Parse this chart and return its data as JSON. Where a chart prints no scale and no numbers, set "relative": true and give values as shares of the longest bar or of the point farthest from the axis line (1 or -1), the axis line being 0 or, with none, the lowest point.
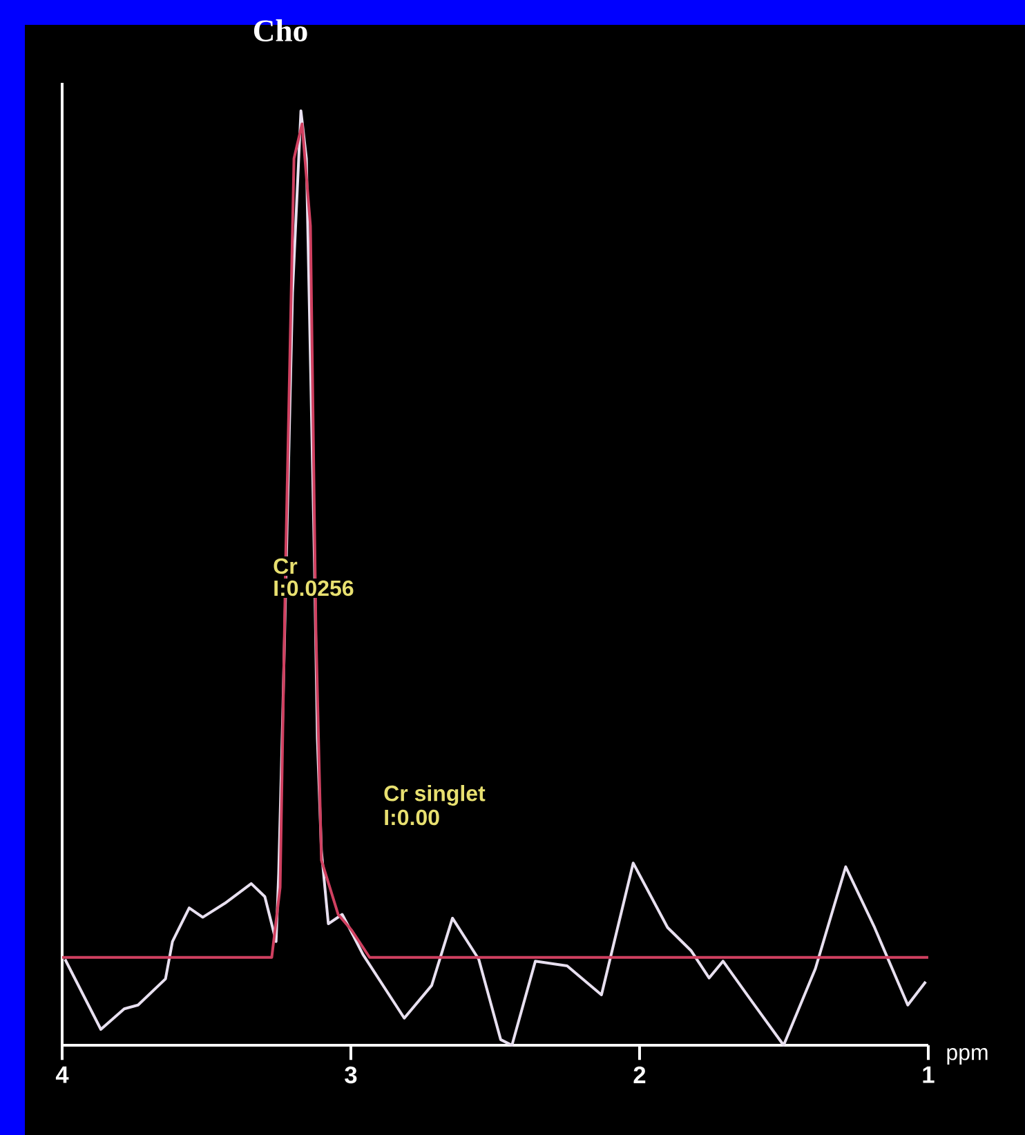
{
  "chart_data": {
    "type": "line",
    "title": "Cho",
    "xlabel": "ppm",
    "relative": true,
    "xlim": [
      4,
      1
    ],
    "xticks": [
      4,
      3,
      2,
      1
    ],
    "annotations": [
      "Cr",
      "I:0.0256",
      "Cr singlet",
      "I:0.00"
    ],
    "series": [
      {
        "color": "#e8e0f0",
        "x": [
          3.99,
          3.866,
          3.785,
          3.737,
          3.642,
          3.618,
          3.56,
          3.513,
          3.436,
          3.345,
          3.298,
          3.259,
          3.25,
          3.236,
          3.202,
          3.173,
          3.154,
          3.126,
          3.116,
          3.102,
          3.078,
          3.03,
          3.006,
          2.958,
          2.815,
          2.72,
          2.648,
          2.557,
          2.481,
          2.442,
          2.361,
          2.251,
          2.132,
          2.022,
          1.903,
          1.821,
          1.759,
          1.711,
          1.616,
          1.501,
          1.391,
          1.286,
          1.186,
          1.071,
          1.009
        ],
        "values": [
          0.092,
          0.017,
          0.039,
          0.043,
          0.071,
          0.111,
          0.147,
          0.137,
          0.152,
          0.173,
          0.159,
          0.111,
          0.184,
          0.353,
          0.805,
          1.0,
          0.949,
          0.516,
          0.328,
          0.208,
          0.13,
          0.14,
          0.126,
          0.097,
          0.029,
          0.064,
          0.136,
          0.092,
          0.006,
          0.0,
          0.09,
          0.085,
          0.054,
          0.195,
          0.126,
          0.101,
          0.072,
          0.09,
          0.049,
          0.0,
          0.082,
          0.191,
          0.126,
          0.043,
          0.068
        ]
      },
      {
        "color": "#d04060",
        "x": [
          4.0,
          3.274,
          3.245,
          3.226,
          3.197,
          3.169,
          3.14,
          3.121,
          3.102,
          3.044,
          2.997,
          2.935,
          1.0
        ],
        "values": [
          0.094,
          0.094,
          0.169,
          0.516,
          0.949,
          0.986,
          0.877,
          0.444,
          0.198,
          0.14,
          0.123,
          0.094,
          0.094
        ]
      }
    ]
  }
}
